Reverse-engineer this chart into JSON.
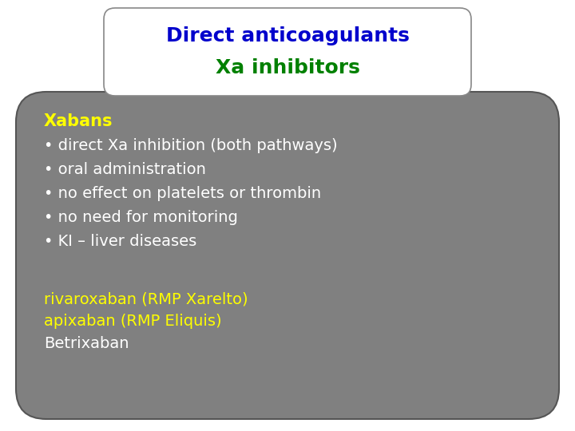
{
  "title_line1": "Direct anticoagulants",
  "title_line2": "Xa inhibitors",
  "title_color1": "#0000cc",
  "title_color2": "#008000",
  "title_box_bg": "#ffffff",
  "title_box_edge": "#888888",
  "main_bg": "#808080",
  "main_box_edge": "#555555",
  "heading_text": "Xabans",
  "heading_color": "#ffff00",
  "bullet_items": [
    "direct Xa inhibition (both pathways)",
    "oral administration",
    "no effect on platelets or thrombin",
    "no need for monitoring",
    "KI – liver diseases"
  ],
  "bullet_color": "#ffffff",
  "footer_items_yellow": [
    "rivaroxaban (RMP Xarelto)",
    "apixaban (RMP Eliquis)"
  ],
  "footer_item_white": "Betrixaban",
  "footer_color_yellow": "#ffff00",
  "footer_color_white": "#ffffff",
  "font_size_title": 18,
  "font_size_heading": 15,
  "font_size_bullet": 14,
  "font_size_footer": 14,
  "background_color": "#ffffff"
}
